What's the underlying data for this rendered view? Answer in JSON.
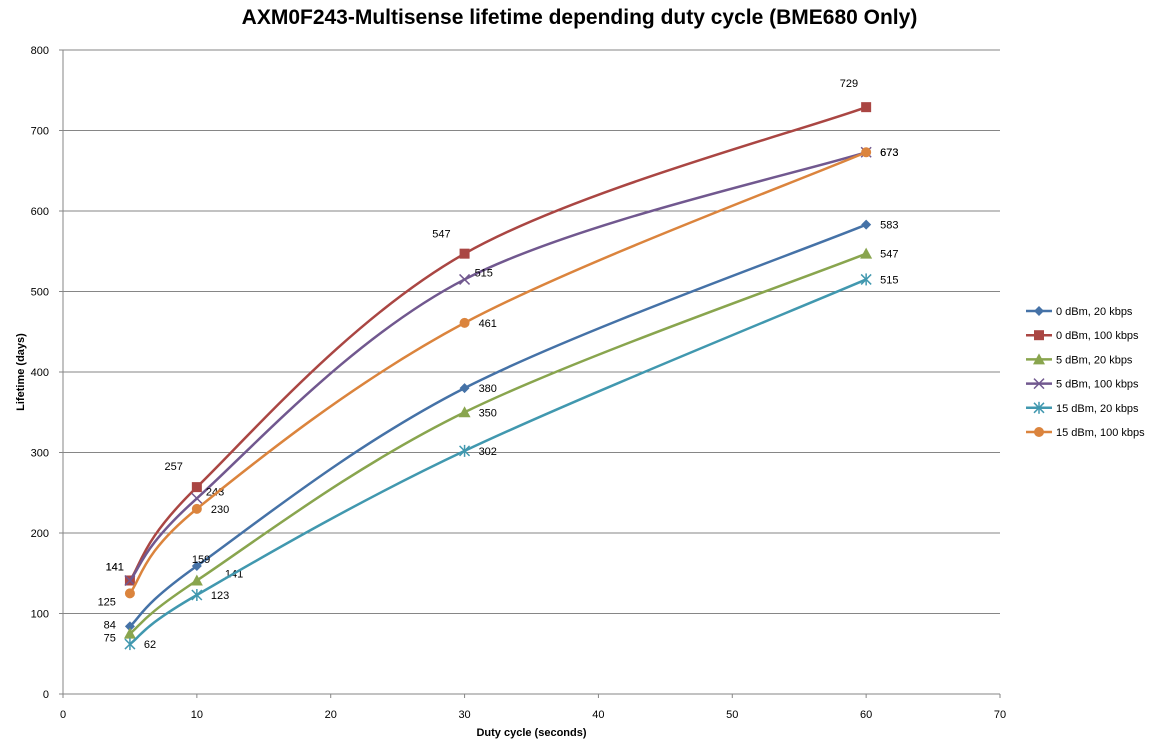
{
  "chart_data": {
    "type": "line",
    "title": "AXM0F243-Multisense lifetime depending duty cycle (BME680 Only)",
    "xlabel": "Duty cycle (seconds)",
    "ylabel": "Lifetime (days)",
    "xlim": [
      0,
      70
    ],
    "ylim": [
      0,
      800
    ],
    "xticks": [
      0,
      10,
      20,
      30,
      40,
      50,
      60,
      70
    ],
    "yticks": [
      0,
      100,
      200,
      300,
      400,
      500,
      600,
      700,
      800
    ],
    "grid": "horizontal",
    "legend_position": "right",
    "x": [
      5,
      10,
      30,
      60
    ],
    "series": [
      {
        "name": "0 dBm, 20 kbps",
        "values": [
          84,
          159,
          380,
          583
        ],
        "color": "#4572A7",
        "marker": "diamond"
      },
      {
        "name": "0 dBm, 100 kbps",
        "values": [
          141,
          257,
          547,
          729
        ],
        "color": "#AA4643",
        "marker": "square"
      },
      {
        "name": "5 dBm, 20 kbps",
        "values": [
          75,
          141,
          350,
          547
        ],
        "color": "#89A54E",
        "marker": "triangle"
      },
      {
        "name": "5 dBm, 100 kbps",
        "values": [
          141,
          243,
          515,
          673
        ],
        "color": "#71588F",
        "marker": "x"
      },
      {
        "name": "15 dBm, 20 kbps",
        "values": [
          62,
          123,
          302,
          515
        ],
        "color": "#4198AF",
        "marker": "star"
      },
      {
        "name": "15 dBm, 100 kbps",
        "values": [
          125,
          230,
          461,
          673
        ],
        "color": "#DB843D",
        "marker": "circle"
      }
    ]
  }
}
